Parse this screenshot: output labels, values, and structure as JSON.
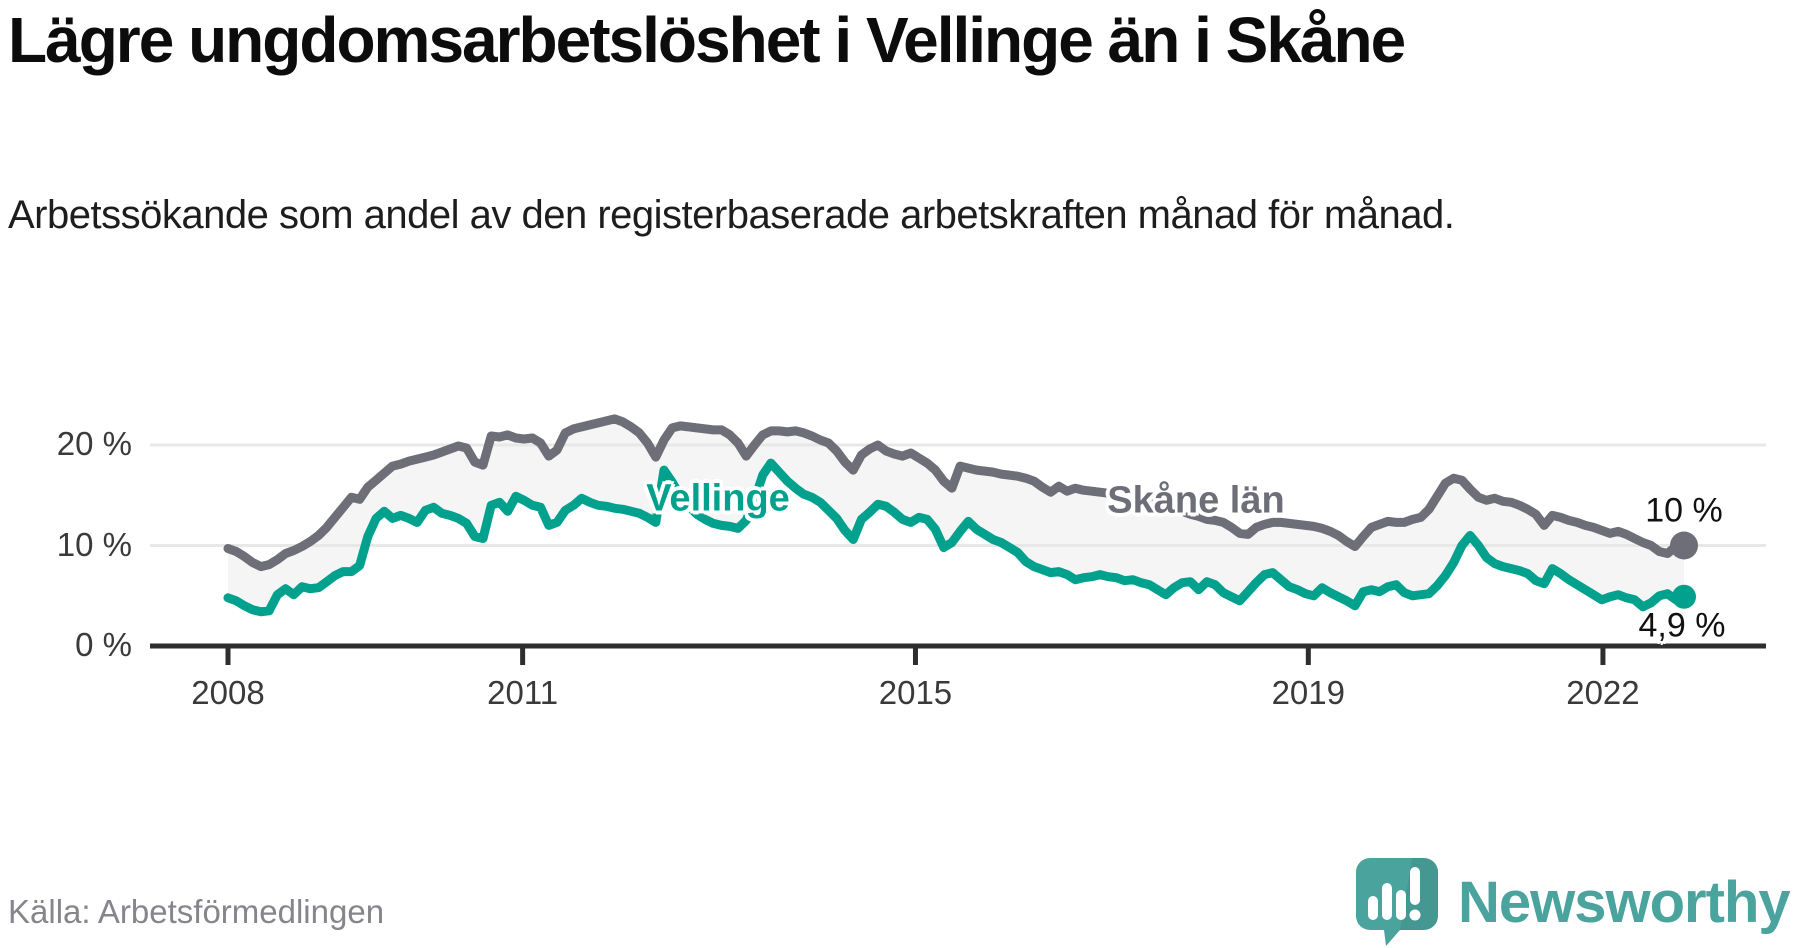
{
  "header": {
    "title": "Lägre ungdomsarbetslöshet i Vellinge än i Skåne",
    "subtitle": "Arbetssökande som andel av den registerbaserade arbetskraften månad för månad."
  },
  "chart_data": {
    "type": "line",
    "title": "Lägre ungdomsarbetslöshet i Vellinge än i Skåne",
    "x_start": "2008-01",
    "x_end": "2022-10",
    "frequency": "monthly",
    "ylim": [
      0,
      24
    ],
    "grid": true,
    "legend": "inline-labels",
    "band_fill": "#f5f5f5",
    "y_ticks": [
      {
        "value": 0,
        "label": "0 %"
      },
      {
        "value": 10,
        "label": "10 %"
      },
      {
        "value": 20,
        "label": "20 %"
      }
    ],
    "x_ticks": [
      {
        "year": 2008,
        "label": "2008"
      },
      {
        "year": 2011,
        "label": "2011"
      },
      {
        "year": 2015,
        "label": "2015"
      },
      {
        "year": 2019,
        "label": "2019"
      },
      {
        "year": 2022,
        "label": "2022"
      }
    ],
    "series": [
      {
        "name": "Skåne län",
        "color": "#6e6e78",
        "end_label": "10 %",
        "end_value": 10.0,
        "values": [
          9.7,
          9.4,
          8.9,
          8.3,
          7.9,
          8.1,
          8.6,
          9.2,
          9.5,
          9.9,
          10.4,
          11.0,
          11.8,
          12.8,
          13.8,
          14.8,
          14.6,
          15.8,
          16.5,
          17.2,
          17.9,
          18.1,
          18.4,
          18.6,
          18.8,
          19.0,
          19.3,
          19.6,
          19.9,
          19.7,
          18.3,
          18.0,
          20.9,
          20.8,
          21.0,
          20.7,
          20.6,
          20.7,
          20.2,
          18.9,
          19.5,
          21.2,
          21.6,
          21.8,
          22.0,
          22.2,
          22.4,
          22.6,
          22.3,
          21.8,
          21.2,
          20.2,
          18.8,
          20.5,
          21.7,
          21.9,
          21.8,
          21.7,
          21.6,
          21.5,
          21.5,
          21.0,
          20.2,
          18.9,
          20.0,
          21.0,
          21.4,
          21.4,
          21.3,
          21.4,
          21.2,
          20.9,
          20.5,
          20.2,
          19.4,
          18.3,
          17.5,
          19.0,
          19.6,
          20.0,
          19.4,
          19.1,
          18.9,
          19.2,
          18.7,
          18.2,
          17.5,
          16.4,
          15.7,
          17.9,
          17.7,
          17.5,
          17.4,
          17.3,
          17.1,
          17.0,
          16.9,
          16.7,
          16.4,
          15.8,
          15.3,
          15.9,
          15.4,
          15.7,
          15.5,
          15.4,
          15.3,
          15.2,
          15.2,
          15.1,
          14.8,
          14.4,
          14.0,
          14.3,
          14.0,
          13.7,
          13.4,
          13.1,
          12.9,
          12.6,
          12.5,
          12.3,
          11.8,
          11.2,
          11.1,
          11.8,
          12.1,
          12.3,
          12.3,
          12.2,
          12.1,
          12.0,
          11.9,
          11.7,
          11.4,
          11.0,
          10.4,
          9.9,
          10.9,
          11.8,
          12.1,
          12.4,
          12.3,
          12.3,
          12.6,
          12.8,
          13.6,
          14.9,
          16.2,
          16.7,
          16.5,
          15.6,
          14.8,
          14.5,
          14.7,
          14.4,
          14.3,
          14.0,
          13.6,
          13.1,
          12.0,
          13.0,
          12.8,
          12.5,
          12.3,
          12.0,
          11.8,
          11.5,
          11.2,
          11.4,
          11.1,
          10.7,
          10.3,
          10.0,
          9.4,
          9.2,
          9.9,
          10.0
        ]
      },
      {
        "name": "Vellinge",
        "color": "#01a18e",
        "end_label": "4,9 %",
        "end_value": 4.9,
        "values": [
          4.8,
          4.5,
          4.0,
          3.6,
          3.4,
          3.5,
          5.1,
          5.7,
          5.1,
          5.9,
          5.7,
          5.8,
          6.4,
          7.0,
          7.4,
          7.4,
          8.0,
          10.9,
          12.7,
          13.4,
          12.7,
          13.0,
          12.7,
          12.3,
          13.5,
          13.8,
          13.2,
          13.0,
          12.7,
          12.2,
          10.9,
          10.7,
          14.0,
          14.3,
          13.4,
          14.9,
          14.5,
          14.0,
          13.8,
          12.0,
          12.3,
          13.5,
          14.0,
          14.7,
          14.3,
          14.0,
          13.9,
          13.7,
          13.6,
          13.4,
          13.2,
          12.8,
          12.3,
          17.5,
          16.3,
          14.9,
          13.9,
          13.1,
          12.6,
          12.2,
          12.0,
          11.9,
          11.7,
          12.5,
          14.5,
          17.0,
          18.2,
          17.3,
          16.4,
          15.7,
          15.1,
          14.8,
          14.3,
          13.5,
          12.7,
          11.5,
          10.6,
          12.6,
          13.3,
          14.1,
          13.9,
          13.3,
          12.6,
          12.3,
          12.8,
          12.6,
          11.6,
          9.8,
          10.3,
          11.4,
          12.4,
          11.6,
          11.1,
          10.6,
          10.3,
          9.8,
          9.3,
          8.4,
          7.9,
          7.6,
          7.3,
          7.4,
          7.1,
          6.6,
          6.8,
          6.9,
          7.1,
          6.9,
          6.8,
          6.5,
          6.6,
          6.3,
          6.1,
          5.6,
          5.1,
          5.8,
          6.3,
          6.4,
          5.6,
          6.4,
          6.1,
          5.3,
          4.9,
          4.5,
          5.4,
          6.3,
          7.1,
          7.3,
          6.6,
          5.9,
          5.6,
          5.2,
          5.0,
          5.8,
          5.3,
          4.9,
          4.5,
          4.0,
          5.4,
          5.6,
          5.4,
          5.9,
          6.1,
          5.3,
          5.0,
          5.1,
          5.2,
          6.0,
          7.0,
          8.3,
          10.0,
          11.0,
          10.0,
          8.8,
          8.2,
          7.9,
          7.7,
          7.5,
          7.2,
          6.5,
          6.2,
          7.7,
          7.2,
          6.6,
          6.1,
          5.6,
          5.1,
          4.6,
          4.9,
          5.1,
          4.8,
          4.6,
          3.9,
          4.3,
          5.0,
          5.2,
          4.6,
          4.9
        ]
      }
    ]
  },
  "footer": {
    "source": "Källa: Arbetsförmedlingen",
    "logo_text": "Newsworthy"
  },
  "colors": {
    "vellinge": "#01a18e",
    "skane": "#6e6e78",
    "grid": "#e8e8e8",
    "axis": "#2e2e2e",
    "band": "#f5f5f5",
    "logo_teal": "#4ba39e"
  }
}
